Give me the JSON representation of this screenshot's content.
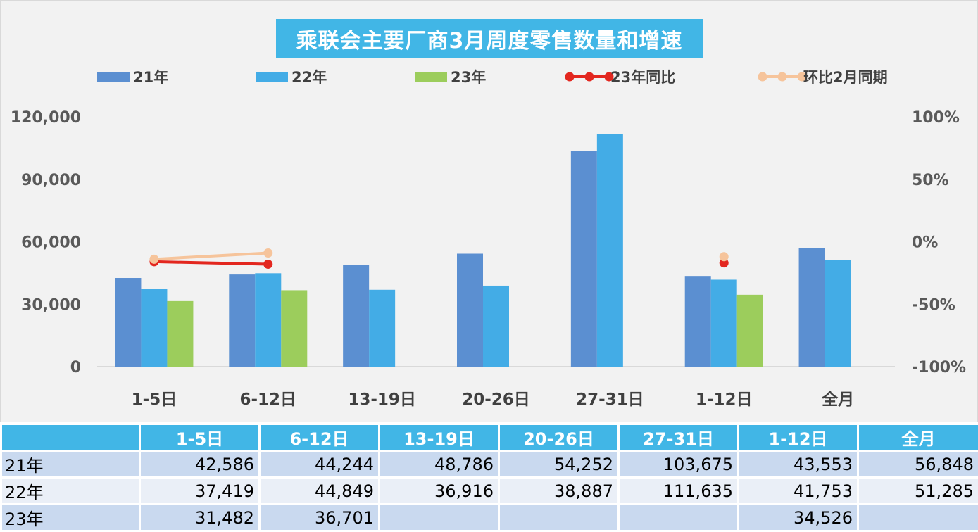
{
  "chart_data": {
    "type": "bar",
    "title": "乘联会主要厂商3月周度零售数量和增速",
    "categories": [
      "1-5日",
      "6-12日",
      "13-19日",
      "20-26日",
      "27-31日",
      "1-12日",
      "全月"
    ],
    "series": [
      {
        "name": "21年",
        "type": "bar",
        "color": "#5b8fd1",
        "values": [
          42586,
          44244,
          48786,
          54252,
          103675,
          43553,
          56848
        ]
      },
      {
        "name": "22年",
        "type": "bar",
        "color": "#43ace6",
        "values": [
          37419,
          44849,
          36916,
          38887,
          111635,
          41753,
          51285
        ]
      },
      {
        "name": "23年",
        "type": "bar",
        "color": "#9ccd5c",
        "values": [
          31482,
          36701,
          null,
          null,
          null,
          34526,
          null
        ]
      },
      {
        "name": "23年同比",
        "type": "line",
        "axis": "right",
        "color": "#e3271f",
        "values": [
          -16,
          -18,
          null,
          null,
          null,
          -17,
          null
        ]
      },
      {
        "name": "环比2月同期",
        "type": "line",
        "axis": "right",
        "color": "#f6c49b",
        "values": [
          -14,
          -9,
          null,
          null,
          null,
          -12,
          null
        ]
      }
    ],
    "ylim": [
      0,
      120000
    ],
    "yticks": [
      "0",
      "30,000",
      "60,000",
      "90,000",
      "120,000"
    ],
    "y2lim": [
      -100,
      100
    ],
    "y2ticks": [
      "-100%",
      "-50%",
      "0%",
      "50%",
      "100%"
    ],
    "legend_position": "top",
    "grid": false
  },
  "table": {
    "header": [
      "",
      "1-5日",
      "6-12日",
      "13-19日",
      "20-26日",
      "27-31日",
      "1-12日",
      "全月"
    ],
    "rows": [
      [
        "21年",
        "42,586",
        "44,244",
        "48,786",
        "54,252",
        "103,675",
        "43,553",
        "56,848"
      ],
      [
        "22年",
        "37,419",
        "44,849",
        "36,916",
        "38,887",
        "111,635",
        "41,753",
        "51,285"
      ],
      [
        "23年",
        "31,482",
        "36,701",
        "",
        "",
        "",
        "34,526",
        ""
      ]
    ]
  }
}
